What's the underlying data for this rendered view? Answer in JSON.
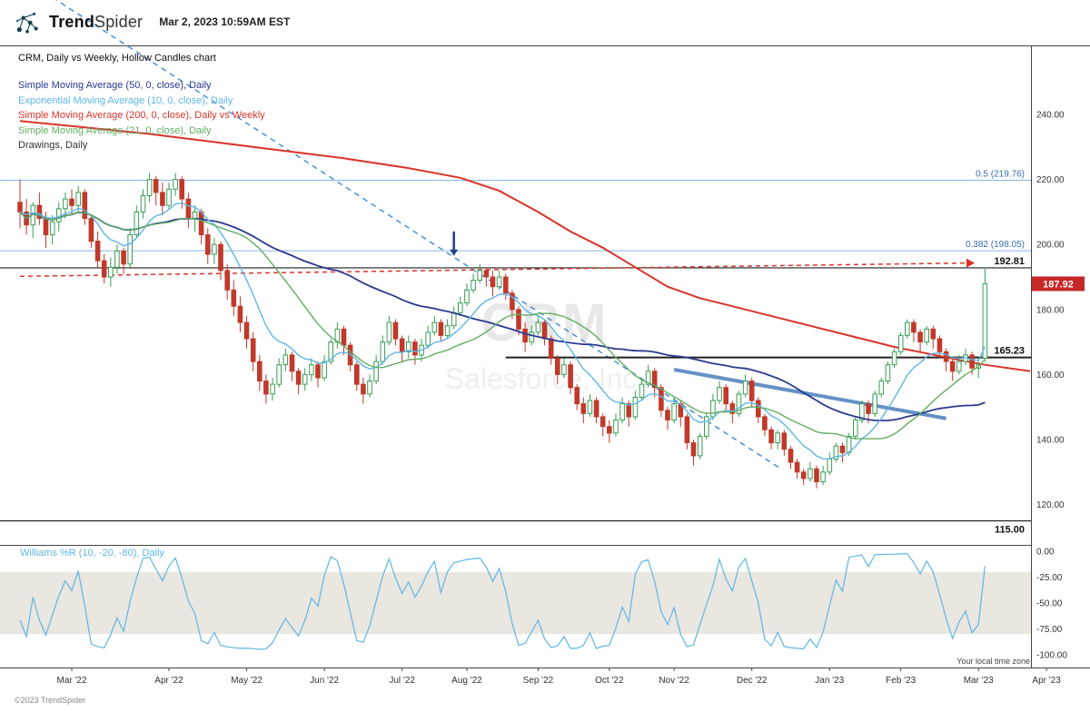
{
  "header": {
    "brand_bold": "Trend",
    "brand_light": "Spider",
    "timestamp": "Mar 2, 2023 10:59AM EST"
  },
  "legend": {
    "title": "CRM, Daily vs Weekly, Hollow Candles chart",
    "items": [
      {
        "label": "Simple Moving Average (50, 0, close), Daily",
        "color": "#2b3a8f"
      },
      {
        "label": "Exponential Moving Average (10, 0, close), Daily",
        "color": "#5fb6e5"
      },
      {
        "label": "Simple Moving Average (200, 0, close), Daily vs Weekly",
        "color": "#d9342b"
      },
      {
        "label": "Simple Moving Average (21, 0, close), Daily",
        "color": "#63ad63"
      },
      {
        "label": "Drawings, Daily",
        "color": "#333333"
      }
    ]
  },
  "watermark": {
    "line1": "CRM",
    "line2": "Salesforce, Inc."
  },
  "indicator_panel": {
    "label": "Williams %R (10, -20, -80), Daily"
  },
  "footer": {
    "copyright": "©2023 TrendSpider",
    "timezone_note": "Your local time zone"
  },
  "chart_data": {
    "type": "candlestick",
    "symbol": "CRM",
    "timeframe": "Daily vs Weekly",
    "style": "Hollow Candles",
    "up_color": "#379e54",
    "down_color": "#c0392b",
    "y_axis": {
      "ticks": [
        "240.00",
        "220.00",
        "200.00",
        "180.00",
        "160.00",
        "140.00",
        "120.00"
      ]
    },
    "x_axis": {
      "labels": [
        "Mar '22",
        "Apr '22",
        "May '22",
        "Jun '22",
        "Jul '22",
        "Aug '22",
        "Sep '22",
        "Oct '22",
        "Nov '22",
        "Dec '22",
        "Jan '23",
        "Feb '23",
        "Mar '23",
        "Apr '23"
      ],
      "tick_indices": [
        8,
        23,
        35,
        47,
        59,
        69,
        80,
        91,
        101,
        113,
        125,
        136,
        148,
        158.5
      ]
    },
    "candles": [
      [
        213,
        220,
        205,
        210
      ],
      [
        210,
        214,
        203,
        206
      ],
      [
        206,
        213,
        202,
        212
      ],
      [
        212,
        216,
        206,
        208
      ],
      [
        208,
        210,
        199,
        203
      ],
      [
        203,
        209,
        200,
        207
      ],
      [
        207,
        213,
        204,
        211
      ],
      [
        211,
        216,
        208,
        214
      ],
      [
        214,
        217,
        209,
        212
      ],
      [
        212,
        218,
        210,
        216
      ],
      [
        216,
        217,
        206,
        208
      ],
      [
        208,
        209,
        199,
        201
      ],
      [
        201,
        204,
        193,
        195
      ],
      [
        195,
        197,
        188,
        190
      ],
      [
        190,
        196,
        187,
        193
      ],
      [
        193,
        200,
        191,
        198
      ],
      [
        198,
        199,
        191,
        194
      ],
      [
        194,
        205,
        193,
        203
      ],
      [
        203,
        212,
        202,
        210
      ],
      [
        210,
        217,
        208,
        215
      ],
      [
        215,
        222,
        213,
        220
      ],
      [
        220,
        221,
        212,
        216
      ],
      [
        216,
        219,
        209,
        212
      ],
      [
        212,
        219,
        211,
        217
      ],
      [
        217,
        222,
        215,
        220
      ],
      [
        220,
        221,
        211,
        214
      ],
      [
        214,
        216,
        205,
        208
      ],
      [
        208,
        212,
        204,
        210
      ],
      [
        210,
        211,
        200,
        203
      ],
      [
        203,
        205,
        194,
        197
      ],
      [
        197,
        202,
        194,
        200
      ],
      [
        200,
        201,
        189,
        192
      ],
      [
        192,
        194,
        183,
        186
      ],
      [
        186,
        189,
        178,
        181
      ],
      [
        181,
        184,
        173,
        176
      ],
      [
        176,
        178,
        168,
        171
      ],
      [
        171,
        173,
        161,
        164
      ],
      [
        164,
        166,
        155,
        158
      ],
      [
        158,
        160,
        151,
        154
      ],
      [
        154,
        159,
        152,
        157
      ],
      [
        157,
        165,
        156,
        163
      ],
      [
        163,
        168,
        161,
        166
      ],
      [
        166,
        167,
        158,
        161
      ],
      [
        161,
        162,
        154,
        157
      ],
      [
        157,
        162,
        155,
        160
      ],
      [
        160,
        165,
        158,
        163
      ],
      [
        163,
        164,
        156,
        159
      ],
      [
        159,
        166,
        158,
        164
      ],
      [
        164,
        171,
        163,
        170
      ],
      [
        170,
        176,
        168,
        174
      ],
      [
        174,
        175,
        166,
        169
      ],
      [
        169,
        170,
        161,
        163
      ],
      [
        163,
        164,
        155,
        157
      ],
      [
        157,
        159,
        151,
        154
      ],
      [
        154,
        160,
        153,
        158
      ],
      [
        158,
        166,
        157,
        164
      ],
      [
        164,
        172,
        163,
        170
      ],
      [
        170,
        178,
        169,
        176
      ],
      [
        176,
        177,
        169,
        171
      ],
      [
        171,
        172,
        164,
        167
      ],
      [
        167,
        172,
        165,
        170
      ],
      [
        170,
        171,
        163,
        166
      ],
      [
        166,
        171,
        164,
        169
      ],
      [
        169,
        175,
        168,
        173
      ],
      [
        173,
        178,
        172,
        176
      ],
      [
        176,
        177,
        170,
        172
      ],
      [
        172,
        177,
        171,
        175
      ],
      [
        175,
        181,
        174,
        179
      ],
      [
        179,
        184,
        178,
        182
      ],
      [
        182,
        188,
        181,
        186
      ],
      [
        186,
        191,
        185,
        189
      ],
      [
        189,
        194,
        188,
        192
      ],
      [
        192,
        193,
        187,
        190
      ],
      [
        190,
        192,
        184,
        187
      ],
      [
        187,
        192,
        186,
        190
      ],
      [
        190,
        191,
        183,
        185
      ],
      [
        185,
        186,
        177,
        180
      ],
      [
        180,
        181,
        172,
        174
      ],
      [
        174,
        176,
        167,
        170
      ],
      [
        170,
        175,
        169,
        173
      ],
      [
        173,
        178,
        172,
        176
      ],
      [
        176,
        177,
        169,
        171
      ],
      [
        171,
        172,
        163,
        165
      ],
      [
        165,
        166,
        157,
        160
      ],
      [
        160,
        165,
        159,
        163
      ],
      [
        163,
        164,
        154,
        156
      ],
      [
        156,
        157,
        149,
        151
      ],
      [
        151,
        153,
        145,
        148
      ],
      [
        148,
        154,
        147,
        152
      ],
      [
        152,
        153,
        145,
        147
      ],
      [
        147,
        148,
        141,
        144
      ],
      [
        144,
        146,
        139,
        142
      ],
      [
        142,
        148,
        141,
        146
      ],
      [
        146,
        153,
        145,
        151
      ],
      [
        151,
        152,
        144,
        147
      ],
      [
        147,
        155,
        146,
        153
      ],
      [
        153,
        159,
        152,
        157
      ],
      [
        157,
        163,
        156,
        161
      ],
      [
        161,
        162,
        153,
        156
      ],
      [
        156,
        157,
        147,
        149
      ],
      [
        149,
        150,
        143,
        146
      ],
      [
        146,
        153,
        145,
        151
      ],
      [
        151,
        152,
        144,
        147
      ],
      [
        147,
        148,
        137,
        139
      ],
      [
        139,
        140,
        132,
        135
      ],
      [
        135,
        142,
        134,
        141
      ],
      [
        141,
        148,
        140,
        147
      ],
      [
        147,
        154,
        146,
        152
      ],
      [
        152,
        158,
        151,
        156
      ],
      [
        156,
        157,
        149,
        151
      ],
      [
        151,
        152,
        145,
        148
      ],
      [
        148,
        155,
        147,
        154
      ],
      [
        154,
        160,
        153,
        158
      ],
      [
        158,
        159,
        150,
        152
      ],
      [
        152,
        153,
        145,
        147
      ],
      [
        147,
        148,
        141,
        143
      ],
      [
        143,
        144,
        137,
        139
      ],
      [
        139,
        143,
        137,
        142
      ],
      [
        142,
        143,
        135,
        137
      ],
      [
        137,
        138,
        131,
        133
      ],
      [
        133,
        134,
        128,
        130
      ],
      [
        130,
        131,
        126,
        128
      ],
      [
        128,
        133,
        127,
        131
      ],
      [
        131,
        132,
        125,
        127
      ],
      [
        127,
        132,
        126,
        130
      ],
      [
        130,
        136,
        129,
        134
      ],
      [
        134,
        139,
        133,
        138
      ],
      [
        138,
        139,
        133,
        136
      ],
      [
        136,
        142,
        135,
        141
      ],
      [
        141,
        147,
        140,
        146
      ],
      [
        146,
        152,
        145,
        151
      ],
      [
        151,
        152,
        145,
        148
      ],
      [
        148,
        155,
        147,
        154
      ],
      [
        154,
        159,
        153,
        158
      ],
      [
        158,
        164,
        157,
        163
      ],
      [
        163,
        168,
        162,
        167
      ],
      [
        167,
        173,
        166,
        172
      ],
      [
        172,
        177,
        171,
        176
      ],
      [
        176,
        177,
        170,
        173
      ],
      [
        173,
        174,
        167,
        170
      ],
      [
        170,
        175,
        169,
        174
      ],
      [
        174,
        175,
        168,
        171
      ],
      [
        171,
        172,
        165,
        167
      ],
      [
        167,
        168,
        161,
        164
      ],
      [
        164,
        165,
        158,
        161
      ],
      [
        161,
        166,
        160,
        164
      ],
      [
        164,
        168,
        163,
        166
      ],
      [
        166,
        167,
        160,
        162
      ],
      [
        162,
        165,
        159,
        163
      ],
      [
        165,
        193,
        164,
        187.92
      ]
    ],
    "moving_averages": [
      {
        "name": "SMA 50 Daily",
        "type": "sma",
        "period": 50,
        "color": "#2b3a8f",
        "width": 1.8
      },
      {
        "name": "EMA 10 Daily",
        "type": "ema",
        "period": 10,
        "color": "#5fb6e5",
        "width": 1.4
      },
      {
        "name": "SMA 21 Daily",
        "type": "sma",
        "period": 21,
        "color": "#63ad63",
        "width": 1.4
      }
    ],
    "sma200_weekly": {
      "name": "SMA 200 Weekly",
      "color": "#d9342b",
      "width": 2,
      "points": [
        [
          0,
          238
        ],
        [
          10,
          236
        ],
        [
          20,
          234
        ],
        [
          30,
          231.5
        ],
        [
          40,
          229
        ],
        [
          50,
          226.5
        ],
        [
          60,
          223.5
        ],
        [
          68,
          220.5
        ],
        [
          74,
          216.5
        ],
        [
          80,
          210
        ],
        [
          85,
          204
        ],
        [
          90,
          199
        ],
        [
          95,
          193
        ],
        [
          100,
          187
        ],
        [
          105,
          183.5
        ],
        [
          110,
          181
        ],
        [
          115,
          178.5
        ],
        [
          120,
          176
        ],
        [
          125,
          173.5
        ],
        [
          130,
          171
        ],
        [
          135,
          168.5
        ],
        [
          140,
          166.5
        ],
        [
          145,
          164.5
        ],
        [
          149,
          163
        ],
        [
          156,
          161
        ]
      ]
    },
    "drawings": {
      "fib_levels": [
        {
          "label": "0.5 (219.76)",
          "price": 219.76,
          "color": "#85b8e8"
        },
        {
          "label": "0.382 (198.05)",
          "price": 198.05,
          "color": "#85b8e8"
        }
      ],
      "price_lines": [
        {
          "label": "192.81",
          "price": 192.81,
          "from_i": null,
          "width": 1.2,
          "label_side": "above"
        },
        {
          "label": "165.23",
          "price": 165.23,
          "from_i": 75,
          "width": 2,
          "label_side": "above"
        },
        {
          "label": "115.00",
          "price": 115.0,
          "from_i": null,
          "width": 1.2,
          "label_side": "below"
        }
      ],
      "red_dashed_trend": {
        "from": [
          0,
          190.2
        ],
        "to": [
          146,
          194.3
        ],
        "color": "#d9342b"
      },
      "blue_dashed_trend": {
        "from": [
          5,
          276
        ],
        "to": [
          117.5,
          131
        ],
        "color": "#4a90d9"
      },
      "thick_trendline": {
        "from": [
          101,
          161.5
        ],
        "to": [
          143,
          146.5
        ],
        "color": "#4a7ebb",
        "width": 4
      },
      "down_arrow": {
        "i": 67,
        "from_price": 204,
        "to_price": 196.5,
        "color": "#24408e"
      }
    },
    "last_price_badge": {
      "label": "187.92",
      "bg": "#c62828",
      "text_color": "#ffffff"
    },
    "williams_r": {
      "period": 10,
      "overbought": -20,
      "oversold": -80,
      "ticks": [
        "0.00",
        "-25.00",
        "-50.00",
        "-75.00",
        "-100.00"
      ],
      "band_color": "#eae6e0",
      "line_color": "#5fb6e5"
    }
  }
}
